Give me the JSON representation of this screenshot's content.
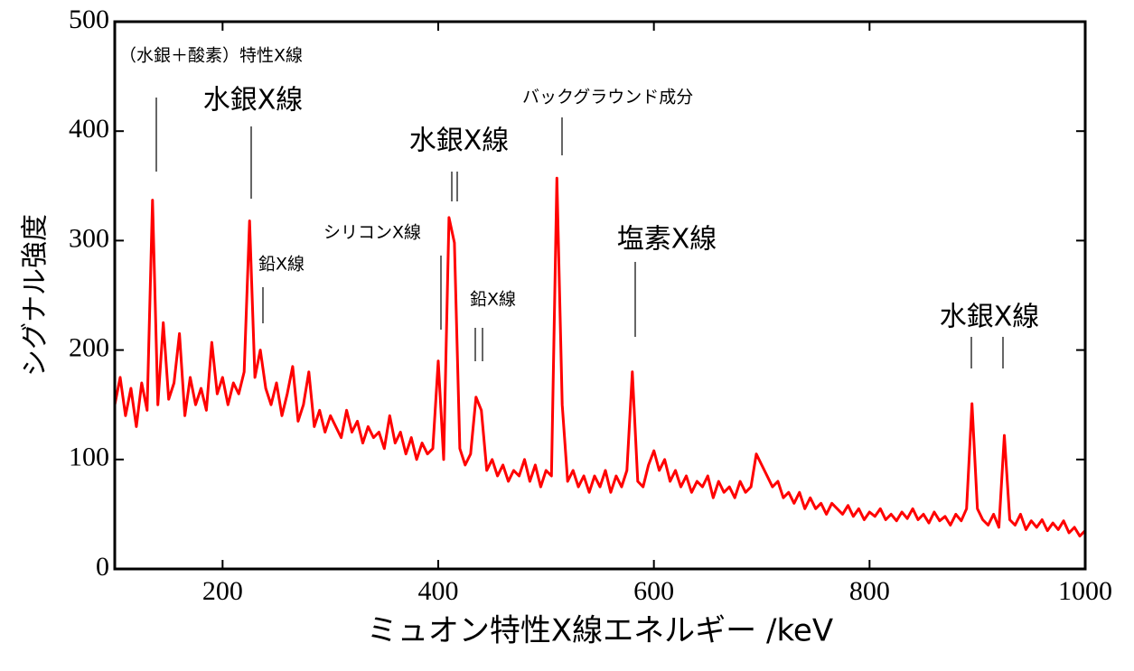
{
  "chart_data": {
    "type": "line",
    "x_label": "ミュオン特性X線エネルギー /keV",
    "y_label": "シグナル強度",
    "xlim": [
      100,
      1000
    ],
    "xticks": [
      200,
      400,
      600,
      800,
      1000
    ],
    "ylim": [
      0,
      500
    ],
    "yticks": [
      0,
      100,
      200,
      300,
      400,
      500
    ],
    "color": "#ff0000",
    "annotations": [
      {
        "text": "（水銀＋酸素）特性X線"
      },
      {
        "text": "水銀X線"
      },
      {
        "text": "鉛X線"
      },
      {
        "text": "シリコンX線"
      },
      {
        "text": "水銀X線"
      },
      {
        "text": "鉛X線"
      },
      {
        "text": "バックグラウンド成分"
      },
      {
        "text": "塩素X線"
      },
      {
        "text": "水銀X線"
      }
    ],
    "x": [
      100,
      105,
      110,
      115,
      120,
      125,
      130,
      135,
      140,
      145,
      150,
      155,
      160,
      165,
      170,
      175,
      180,
      185,
      190,
      195,
      200,
      205,
      210,
      215,
      220,
      225,
      230,
      235,
      240,
      245,
      250,
      255,
      260,
      265,
      270,
      275,
      280,
      285,
      290,
      295,
      300,
      305,
      310,
      315,
      320,
      325,
      330,
      335,
      340,
      345,
      350,
      355,
      360,
      365,
      370,
      375,
      380,
      385,
      390,
      395,
      400,
      405,
      410,
      415,
      420,
      425,
      430,
      435,
      440,
      445,
      450,
      455,
      460,
      465,
      470,
      475,
      480,
      485,
      490,
      495,
      500,
      505,
      510,
      515,
      520,
      525,
      530,
      535,
      540,
      545,
      550,
      555,
      560,
      565,
      570,
      575,
      580,
      585,
      590,
      595,
      600,
      605,
      610,
      615,
      620,
      625,
      630,
      635,
      640,
      645,
      650,
      655,
      660,
      665,
      670,
      675,
      680,
      685,
      690,
      695,
      700,
      705,
      710,
      715,
      720,
      725,
      730,
      735,
      740,
      745,
      750,
      755,
      760,
      765,
      770,
      775,
      780,
      785,
      790,
      795,
      800,
      805,
      810,
      815,
      820,
      825,
      830,
      835,
      840,
      845,
      850,
      855,
      860,
      865,
      870,
      875,
      880,
      885,
      890,
      895,
      900,
      905,
      910,
      915,
      920,
      925,
      930,
      935,
      940,
      945,
      950,
      955,
      960,
      965,
      970,
      975,
      980,
      985,
      990,
      995,
      1000
    ],
    "values": [
      150,
      175,
      140,
      165,
      130,
      170,
      145,
      337,
      150,
      225,
      155,
      170,
      215,
      140,
      175,
      150,
      165,
      145,
      207,
      160,
      175,
      150,
      170,
      160,
      180,
      318,
      175,
      200,
      165,
      150,
      170,
      140,
      160,
      185,
      135,
      150,
      180,
      130,
      145,
      125,
      140,
      130,
      120,
      145,
      125,
      135,
      115,
      130,
      120,
      125,
      110,
      140,
      115,
      125,
      105,
      120,
      100,
      115,
      105,
      110,
      190,
      100,
      321,
      298,
      110,
      95,
      105,
      157,
      145,
      90,
      100,
      85,
      95,
      80,
      90,
      85,
      100,
      80,
      95,
      75,
      90,
      85,
      357,
      150,
      80,
      90,
      75,
      85,
      70,
      85,
      75,
      90,
      70,
      85,
      75,
      90,
      180,
      80,
      75,
      95,
      108,
      90,
      100,
      80,
      90,
      75,
      85,
      70,
      80,
      75,
      85,
      65,
      80,
      70,
      75,
      65,
      80,
      70,
      75,
      105,
      95,
      85,
      75,
      80,
      65,
      70,
      60,
      70,
      55,
      65,
      55,
      60,
      50,
      60,
      55,
      50,
      58,
      48,
      55,
      45,
      52,
      48,
      55,
      45,
      50,
      44,
      52,
      46,
      55,
      45,
      50,
      42,
      52,
      44,
      48,
      40,
      50,
      44,
      55,
      151,
      55,
      45,
      40,
      50,
      38,
      122,
      45,
      40,
      50,
      36,
      44,
      38,
      45,
      35,
      42,
      36,
      44,
      33,
      38,
      30,
      35
    ]
  }
}
